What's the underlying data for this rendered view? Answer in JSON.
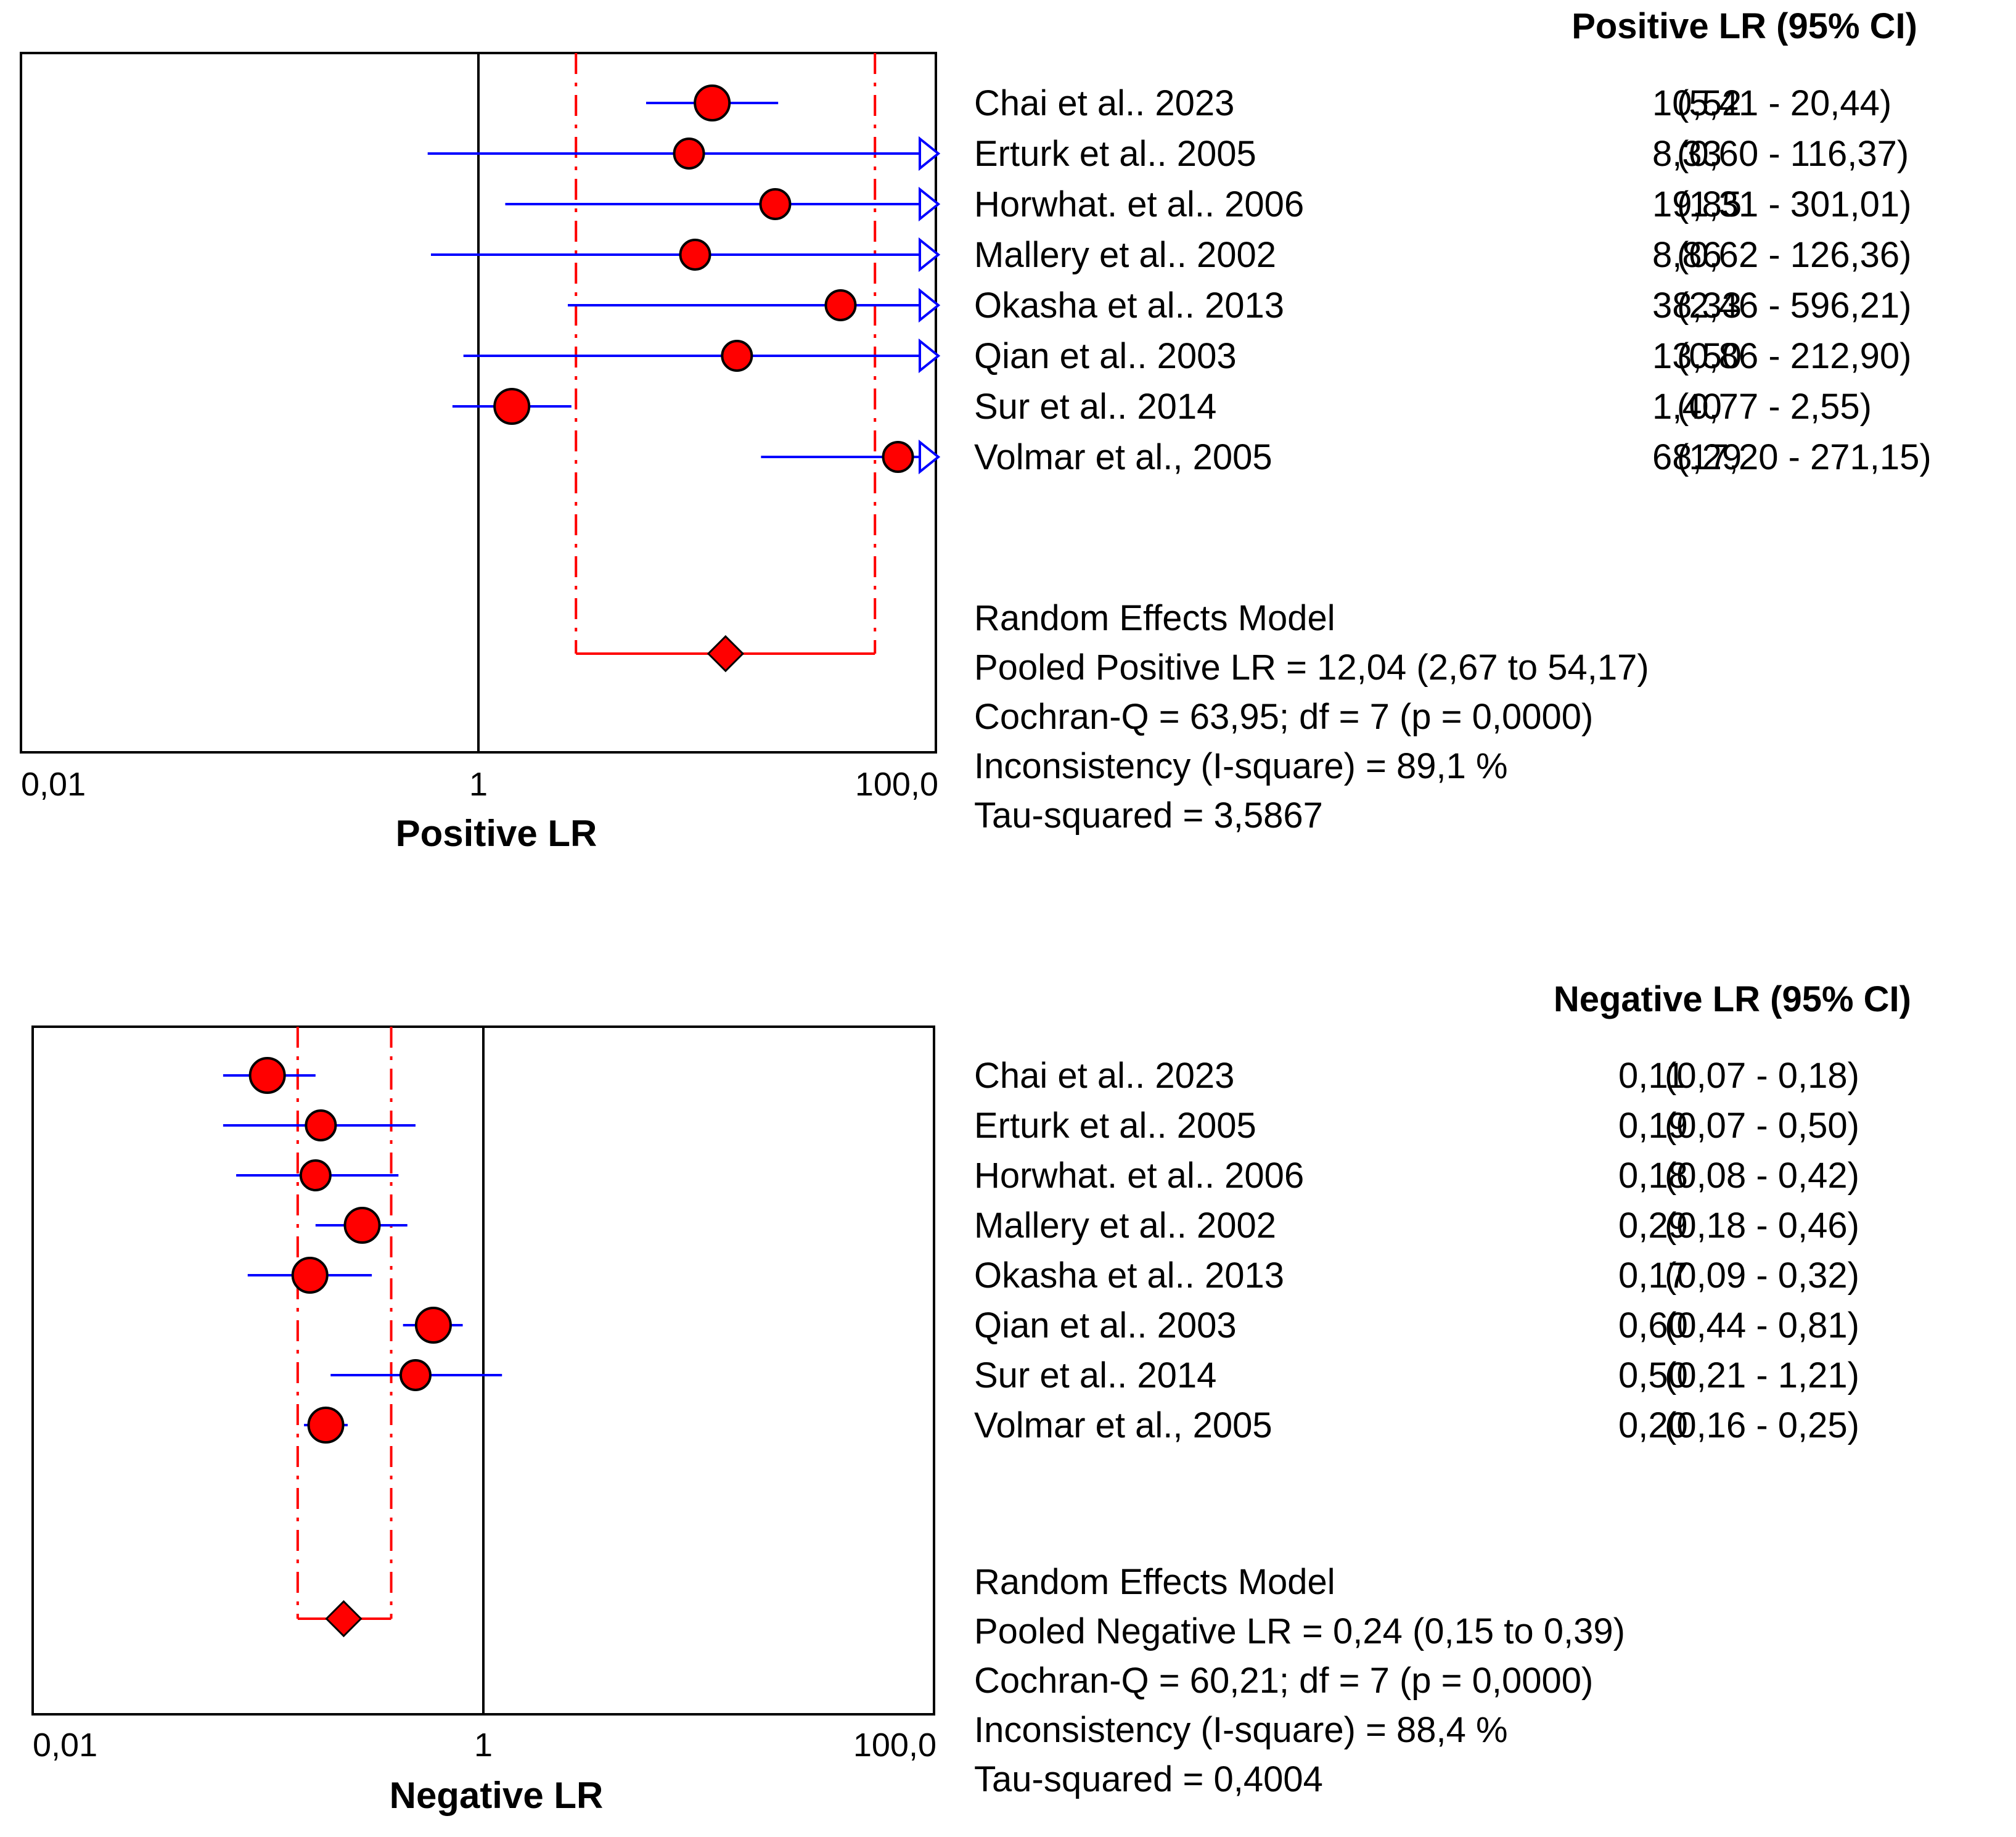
{
  "chart_data": [
    {
      "type": "forest",
      "header": "Positive LR (95% CI)",
      "xlabel": "Positive LR",
      "x_scale": "log",
      "xlim": [
        0.01,
        100.0
      ],
      "x_tick_labels": [
        "0,01",
        "1",
        "100,0"
      ],
      "x_tick_values": [
        0.01,
        1,
        100
      ],
      "reference_line": 1,
      "studies": [
        {
          "label": "Chai et al.. 2023",
          "estimate": 10.52,
          "lower": 5.41,
          "upper": 20.44,
          "estimate_text": "10,52",
          "ci_text": "(5,41 - 20,44)"
        },
        {
          "label": "Erturk et al.. 2005",
          "estimate": 8.33,
          "lower": 0.6,
          "upper": 116.37,
          "estimate_text": "8,33",
          "ci_text": "(0,60 - 116,37)"
        },
        {
          "label": "Horwhat. et al.. 2006",
          "estimate": 19.85,
          "lower": 1.31,
          "upper": 301.01,
          "estimate_text": "19,85",
          "ci_text": "(1,31 - 301,01)"
        },
        {
          "label": "Mallery et al.. 2002",
          "estimate": 8.86,
          "lower": 0.62,
          "upper": 126.36,
          "estimate_text": "8,86",
          "ci_text": "(0,62 - 126,36)"
        },
        {
          "label": "Okasha et al.. 2013",
          "estimate": 38.33,
          "lower": 2.46,
          "upper": 596.21,
          "estimate_text": "38,33",
          "ci_text": "(2,46 - 596,21)"
        },
        {
          "label": "Qian et al.. 2003",
          "estimate": 13.5,
          "lower": 0.86,
          "upper": 212.9,
          "estimate_text": "13,50",
          "ci_text": "(0,86 - 212,90)"
        },
        {
          "label": "Sur et al.. 2014",
          "estimate": 1.4,
          "lower": 0.77,
          "upper": 2.55,
          "estimate_text": "1,40",
          "ci_text": "(0,77 - 2,55)"
        },
        {
          "label": "Volmar et al., 2005",
          "estimate": 68.29,
          "lower": 17.2,
          "upper": 271.15,
          "estimate_text": "68,29",
          "ci_text": "(17,20 - 271,15)"
        }
      ],
      "pooled": {
        "estimate": 12.04,
        "lower": 2.67,
        "upper": 54.17
      },
      "summary_lines": [
        "Random Effects Model",
        "Pooled Positive LR = 12,04 (2,67 to 54,17)",
        "Cochran-Q = 63,95; df =  7 (p = 0,0000)",
        "Inconsistency (I-square) = 89,1 %",
        "Tau-squared = 3,5867"
      ]
    },
    {
      "type": "forest",
      "header": "Negative LR (95% CI)",
      "xlabel": "Negative LR",
      "x_scale": "log",
      "xlim": [
        0.01,
        100.0
      ],
      "x_tick_labels": [
        "0,01",
        "1",
        "100,0"
      ],
      "x_tick_values": [
        0.01,
        1,
        100
      ],
      "reference_line": 1,
      "studies": [
        {
          "label": "Chai et al.. 2023",
          "estimate": 0.11,
          "lower": 0.07,
          "upper": 0.18,
          "estimate_text": "0,11",
          "ci_text": "(0,07 - 0,18)"
        },
        {
          "label": "Erturk et al.. 2005",
          "estimate": 0.19,
          "lower": 0.07,
          "upper": 0.5,
          "estimate_text": "0,19",
          "ci_text": "(0,07 - 0,50)"
        },
        {
          "label": "Horwhat. et al.. 2006",
          "estimate": 0.18,
          "lower": 0.08,
          "upper": 0.42,
          "estimate_text": "0,18",
          "ci_text": "(0,08 - 0,42)"
        },
        {
          "label": "Mallery et al.. 2002",
          "estimate": 0.29,
          "lower": 0.18,
          "upper": 0.46,
          "estimate_text": "0,29",
          "ci_text": "(0,18 - 0,46)"
        },
        {
          "label": "Okasha et al.. 2013",
          "estimate": 0.17,
          "lower": 0.09,
          "upper": 0.32,
          "estimate_text": "0,17",
          "ci_text": "(0,09 - 0,32)"
        },
        {
          "label": "Qian et al.. 2003",
          "estimate": 0.6,
          "lower": 0.44,
          "upper": 0.81,
          "estimate_text": "0,60",
          "ci_text": "(0,44 - 0,81)"
        },
        {
          "label": "Sur et al.. 2014",
          "estimate": 0.5,
          "lower": 0.21,
          "upper": 1.21,
          "estimate_text": "0,50",
          "ci_text": "(0,21 - 1,21)"
        },
        {
          "label": "Volmar et al., 2005",
          "estimate": 0.2,
          "lower": 0.16,
          "upper": 0.25,
          "estimate_text": "0,20",
          "ci_text": "(0,16 - 0,25)"
        }
      ],
      "pooled": {
        "estimate": 0.24,
        "lower": 0.15,
        "upper": 0.39
      },
      "summary_lines": [
        "Random Effects Model",
        "Pooled Negative LR = 0,24 (0,15 to 0,39)",
        "Cochran-Q = 60,21; df =  7 (p = 0,0000)",
        "Inconsistency (I-square) = 88,4 %",
        "Tau-squared = 0,4004"
      ]
    }
  ],
  "colors": {
    "ci_line": "#0000ff",
    "marker_fill": "#ff0000",
    "marker_stroke": "#000000",
    "pooled": "#ff0000",
    "frame": "#000000"
  }
}
